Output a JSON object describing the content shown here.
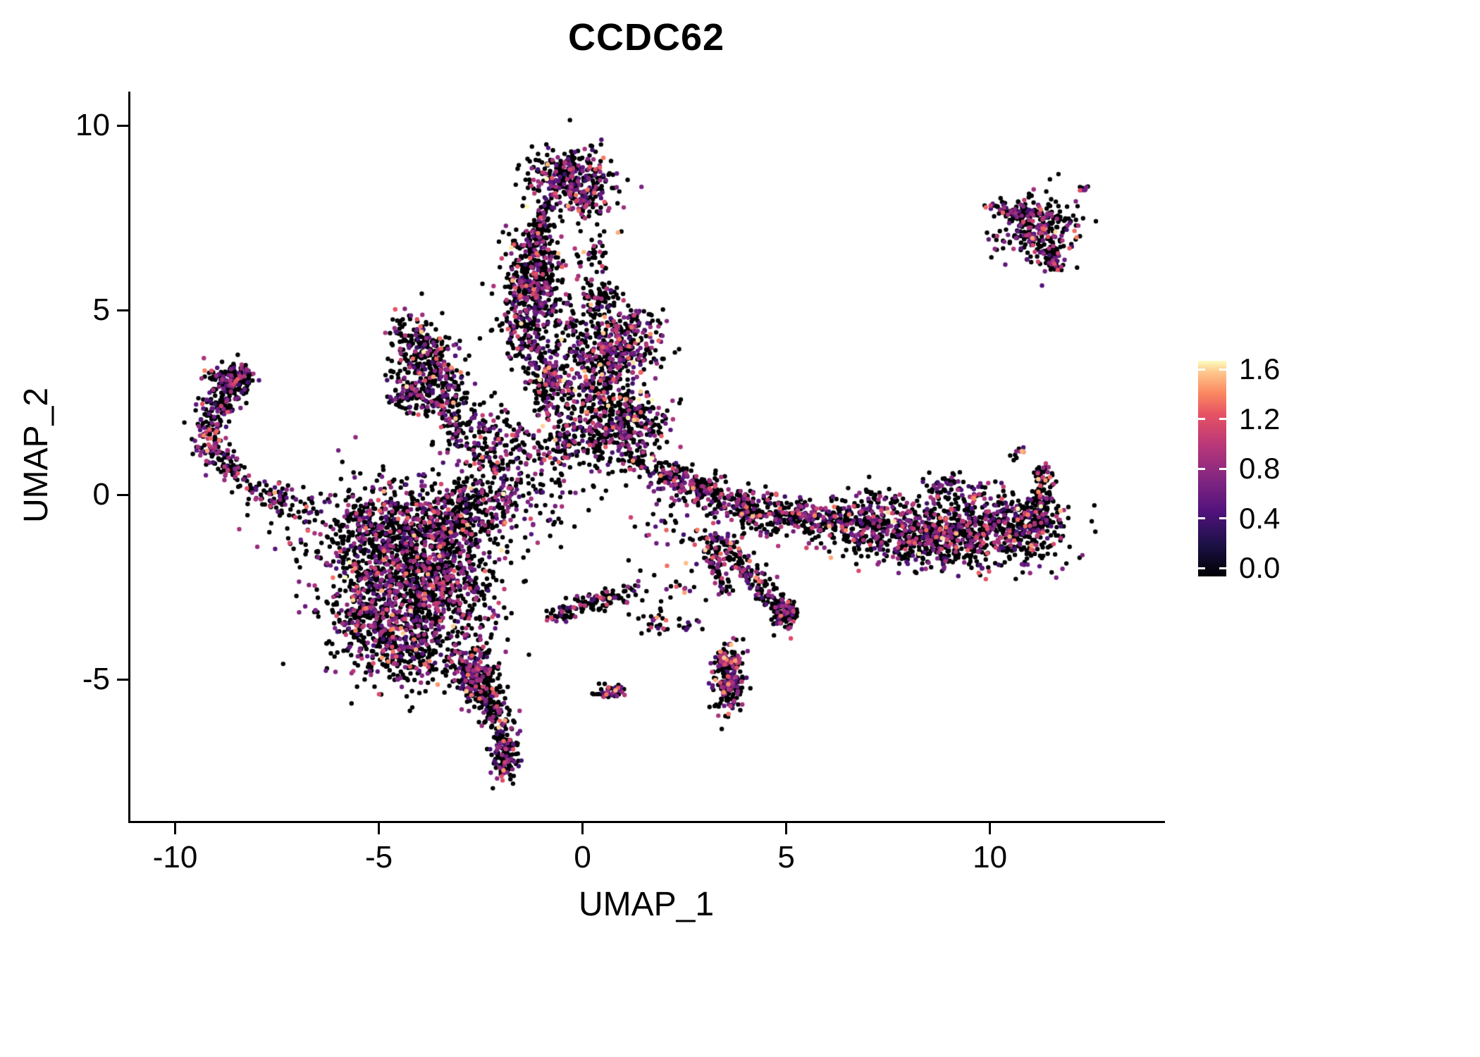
{
  "chart_data": {
    "type": "scatter",
    "title": "CCDC62",
    "xlabel": "UMAP_1",
    "ylabel": "UMAP_2",
    "x_ticks": [
      -10,
      -5,
      0,
      5,
      10
    ],
    "y_ticks": [
      -5,
      0,
      5,
      10
    ],
    "xlim": [
      -11.1,
      14.2
    ],
    "ylim": [
      -8.8,
      10.9
    ],
    "grid": false,
    "point_color_meaning": "CCDC62 expression level",
    "legend": {
      "position": "right",
      "range": [
        0,
        1.6
      ],
      "ticks": [
        0.0,
        0.4,
        0.8,
        1.2,
        1.6
      ],
      "colormap": "magma",
      "stops": [
        [
          0,
          "#000004"
        ],
        [
          0.15,
          "#1d1147"
        ],
        [
          0.3,
          "#51127c"
        ],
        [
          0.45,
          "#822681"
        ],
        [
          0.6,
          "#b63679"
        ],
        [
          0.75,
          "#e65164"
        ],
        [
          0.85,
          "#fb8861"
        ],
        [
          0.95,
          "#fec98d"
        ],
        [
          1,
          "#fcfdbf"
        ]
      ]
    },
    "expression": {
      "zero_fraction": 0.66,
      "max": 1.6
    },
    "clusters": [
      {
        "shape": "blob",
        "cx": -4.7,
        "cy": -1.1,
        "sx": 1.05,
        "sy": 0.75,
        "n": 850
      },
      {
        "shape": "blob",
        "cx": -3.7,
        "cy": -2.6,
        "sx": 0.85,
        "sy": 0.85,
        "n": 750
      },
      {
        "shape": "blob",
        "cx": -5.2,
        "cy": -3.4,
        "sx": 0.65,
        "sy": 0.7,
        "n": 350
      },
      {
        "shape": "blob",
        "cx": -2.9,
        "cy": -0.6,
        "sx": 0.6,
        "sy": 0.5,
        "n": 250
      },
      {
        "shape": "blob",
        "cx": -4.3,
        "cy": -4.3,
        "sx": 0.5,
        "sy": 0.5,
        "n": 200
      },
      {
        "shape": "path",
        "pts": [
          [
            -3.1,
            -4.3
          ],
          [
            -2.6,
            -5.0
          ],
          [
            -2.3,
            -5.6
          ]
        ],
        "jitter": 0.22,
        "n": 160
      },
      {
        "shape": "path",
        "pts": [
          [
            -2.3,
            -5.6
          ],
          [
            -2.0,
            -6.3
          ],
          [
            -1.85,
            -7.0
          ],
          [
            -1.9,
            -7.5
          ]
        ],
        "jitter": 0.18,
        "n": 220
      },
      {
        "shape": "blob",
        "cx": -2.6,
        "cy": -4.9,
        "sx": 0.3,
        "sy": 0.35,
        "n": 120
      },
      {
        "shape": "path",
        "pts": [
          [
            -6.9,
            -0.4
          ],
          [
            -7.9,
            0.1
          ],
          [
            -8.8,
            0.8
          ],
          [
            -9.3,
            1.5
          ],
          [
            -9.0,
            2.3
          ],
          [
            -8.6,
            2.9
          ],
          [
            -8.4,
            3.3
          ]
        ],
        "jitter": 0.22,
        "n": 420
      },
      {
        "shape": "blob",
        "cx": -8.7,
        "cy": 3.2,
        "sx": 0.25,
        "sy": 0.2,
        "n": 60
      },
      {
        "shape": "path",
        "pts": [
          [
            -4.4,
            4.6
          ],
          [
            -3.9,
            3.9
          ],
          [
            -3.4,
            3.2
          ],
          [
            -3.0,
            2.6
          ]
        ],
        "jitter": 0.28,
        "n": 200
      },
      {
        "shape": "path",
        "pts": [
          [
            -4.6,
            2.9
          ],
          [
            -4.0,
            2.6
          ],
          [
            -3.3,
            2.3
          ]
        ],
        "jitter": 0.22,
        "n": 130
      },
      {
        "shape": "blob",
        "cx": -3.9,
        "cy": 3.5,
        "sx": 0.45,
        "sy": 0.55,
        "n": 150
      },
      {
        "shape": "path",
        "pts": [
          [
            -3.2,
            2.2
          ],
          [
            -3.0,
            1.4
          ]
        ],
        "jitter": 0.15,
        "n": 40
      },
      {
        "shape": "blob",
        "cx": -1.25,
        "cy": 5.7,
        "sx": 0.4,
        "sy": 0.7,
        "n": 420
      },
      {
        "shape": "path",
        "pts": [
          [
            -1.6,
            4.6
          ],
          [
            -1.2,
            3.8
          ],
          [
            -0.8,
            3.0
          ],
          [
            -0.6,
            2.4
          ]
        ],
        "jitter": 0.3,
        "n": 260
      },
      {
        "shape": "blob",
        "cx": -0.35,
        "cy": 8.6,
        "sx": 0.55,
        "sy": 0.4,
        "n": 330
      },
      {
        "shape": "path",
        "pts": [
          [
            -0.9,
            7.6
          ],
          [
            -1.05,
            7.0
          ],
          [
            -1.15,
            6.5
          ]
        ],
        "jitter": 0.2,
        "n": 110
      },
      {
        "shape": "blob",
        "cx": 0.1,
        "cy": 7.9,
        "sx": 0.3,
        "sy": 0.3,
        "n": 60
      },
      {
        "shape": "blob",
        "cx": -0.2,
        "cy": 4.2,
        "sx": 0.6,
        "sy": 0.9,
        "n": 130
      },
      {
        "shape": "blob",
        "cx": 0.85,
        "cy": 3.95,
        "sx": 0.5,
        "sy": 0.5,
        "n": 300
      },
      {
        "shape": "blob",
        "cx": 1.0,
        "cy": 2.0,
        "sx": 0.55,
        "sy": 0.45,
        "n": 280
      },
      {
        "shape": "blob",
        "cx": 0.45,
        "cy": 5.35,
        "sx": 0.2,
        "sy": 0.25,
        "n": 60
      },
      {
        "shape": "blob",
        "cx": 0.3,
        "cy": 2.9,
        "sx": 0.4,
        "sy": 0.4,
        "n": 110
      },
      {
        "shape": "blob",
        "cx": -0.3,
        "cy": 1.4,
        "sx": 0.9,
        "sy": 0.35,
        "n": 220
      },
      {
        "shape": "blob",
        "cx": -1.8,
        "cy": 0.4,
        "sx": 0.7,
        "sy": 0.6,
        "n": 180
      },
      {
        "shape": "blob",
        "cx": -2.4,
        "cy": 1.7,
        "sx": 0.4,
        "sy": 0.4,
        "n": 80
      },
      {
        "shape": "path",
        "pts": [
          [
            1.9,
            0.6
          ],
          [
            2.6,
            0.3
          ],
          [
            3.3,
            0.0
          ],
          [
            4.1,
            -0.35
          ]
        ],
        "jitter": 0.22,
        "n": 300
      },
      {
        "shape": "path",
        "pts": [
          [
            4.1,
            -0.35
          ],
          [
            5.0,
            -0.6
          ],
          [
            6.0,
            -0.75
          ],
          [
            7.2,
            -1.0
          ]
        ],
        "jitter": 0.3,
        "n": 380
      },
      {
        "shape": "blob",
        "cx": 8.3,
        "cy": -1.15,
        "sx": 0.8,
        "sy": 0.45,
        "n": 420
      },
      {
        "shape": "blob",
        "cx": 10.0,
        "cy": -0.95,
        "sx": 0.9,
        "sy": 0.5,
        "n": 520
      },
      {
        "shape": "blob",
        "cx": 11.15,
        "cy": -0.7,
        "sx": 0.3,
        "sy": 0.35,
        "n": 150
      },
      {
        "shape": "path",
        "pts": [
          [
            11.25,
            -0.4
          ],
          [
            11.3,
            0.3
          ],
          [
            11.35,
            0.75
          ]
        ],
        "jitter": 0.12,
        "n": 70
      },
      {
        "shape": "blob",
        "cx": 7.0,
        "cy": -0.4,
        "sx": 0.5,
        "sy": 0.3,
        "n": 90
      },
      {
        "shape": "blob",
        "cx": 9.0,
        "cy": 0.2,
        "sx": 0.5,
        "sy": 0.3,
        "n": 70
      },
      {
        "shape": "blob",
        "cx": 10.7,
        "cy": 1.15,
        "sx": 0.1,
        "sy": 0.1,
        "n": 10
      },
      {
        "shape": "path",
        "pts": [
          [
            3.3,
            -1.2
          ],
          [
            3.9,
            -1.9
          ],
          [
            4.5,
            -2.6
          ],
          [
            5.0,
            -3.3
          ]
        ],
        "jitter": 0.18,
        "n": 200
      },
      {
        "shape": "blob",
        "cx": 4.95,
        "cy": -3.25,
        "sx": 0.15,
        "sy": 0.2,
        "n": 60
      },
      {
        "shape": "path",
        "pts": [
          [
            3.05,
            -1.3
          ],
          [
            3.25,
            -2.0
          ],
          [
            3.5,
            -2.6
          ]
        ],
        "jitter": 0.12,
        "n": 70
      },
      {
        "shape": "blob",
        "cx": 3.6,
        "cy": -5.0,
        "sx": 0.18,
        "sy": 0.45,
        "n": 200
      },
      {
        "shape": "blob",
        "cx": 3.45,
        "cy": -4.45,
        "sx": 0.12,
        "sy": 0.15,
        "n": 40
      },
      {
        "shape": "path",
        "pts": [
          [
            -0.75,
            -3.3
          ],
          [
            -0.2,
            -3.05
          ],
          [
            0.5,
            -2.8
          ],
          [
            1.3,
            -2.65
          ]
        ],
        "jitter": 0.15,
        "n": 130
      },
      {
        "shape": "blob",
        "cx": 0.7,
        "cy": -5.35,
        "sx": 0.18,
        "sy": 0.1,
        "n": 45
      },
      {
        "shape": "blob",
        "cx": 1.8,
        "cy": -3.4,
        "sx": 0.3,
        "sy": 0.2,
        "n": 25
      },
      {
        "shape": "blob",
        "cx": 2.6,
        "cy": -3.55,
        "sx": 0.15,
        "sy": 0.1,
        "n": 12
      },
      {
        "shape": "blob",
        "cx": 11.2,
        "cy": 7.2,
        "sx": 0.5,
        "sy": 0.45,
        "n": 260
      },
      {
        "shape": "path",
        "pts": [
          [
            10.4,
            7.8
          ],
          [
            10.9,
            7.5
          ]
        ],
        "jitter": 0.15,
        "n": 50
      },
      {
        "shape": "path",
        "pts": [
          [
            11.5,
            6.6
          ],
          [
            11.6,
            6.1
          ]
        ],
        "jitter": 0.12,
        "n": 50
      },
      {
        "shape": "blob",
        "cx": 12.35,
        "cy": 8.3,
        "sx": 0.08,
        "sy": 0.08,
        "n": 8
      },
      {
        "shape": "blob",
        "cx": 10.15,
        "cy": 7.75,
        "sx": 0.15,
        "sy": 0.1,
        "n": 15
      },
      {
        "shape": "blob",
        "cx": -1.0,
        "cy": 0.2,
        "sx": 1.2,
        "sy": 0.8,
        "n": 60
      },
      {
        "shape": "blob",
        "cx": 2.4,
        "cy": -0.9,
        "sx": 0.6,
        "sy": 0.5,
        "n": 50
      },
      {
        "shape": "blob",
        "cx": 0.3,
        "cy": 6.6,
        "sx": 0.3,
        "sy": 0.5,
        "n": 40
      },
      {
        "shape": "blob",
        "cx": 1.15,
        "cy": 4.6,
        "sx": 0.3,
        "sy": 0.3,
        "n": 50
      },
      {
        "shape": "blob",
        "cx": 1.4,
        "cy": 0.85,
        "sx": 0.25,
        "sy": 0.2,
        "n": 40
      },
      {
        "shape": "blob",
        "cx": 2.4,
        "cy": -2.5,
        "sx": 0.3,
        "sy": 0.3,
        "n": 15
      }
    ]
  }
}
